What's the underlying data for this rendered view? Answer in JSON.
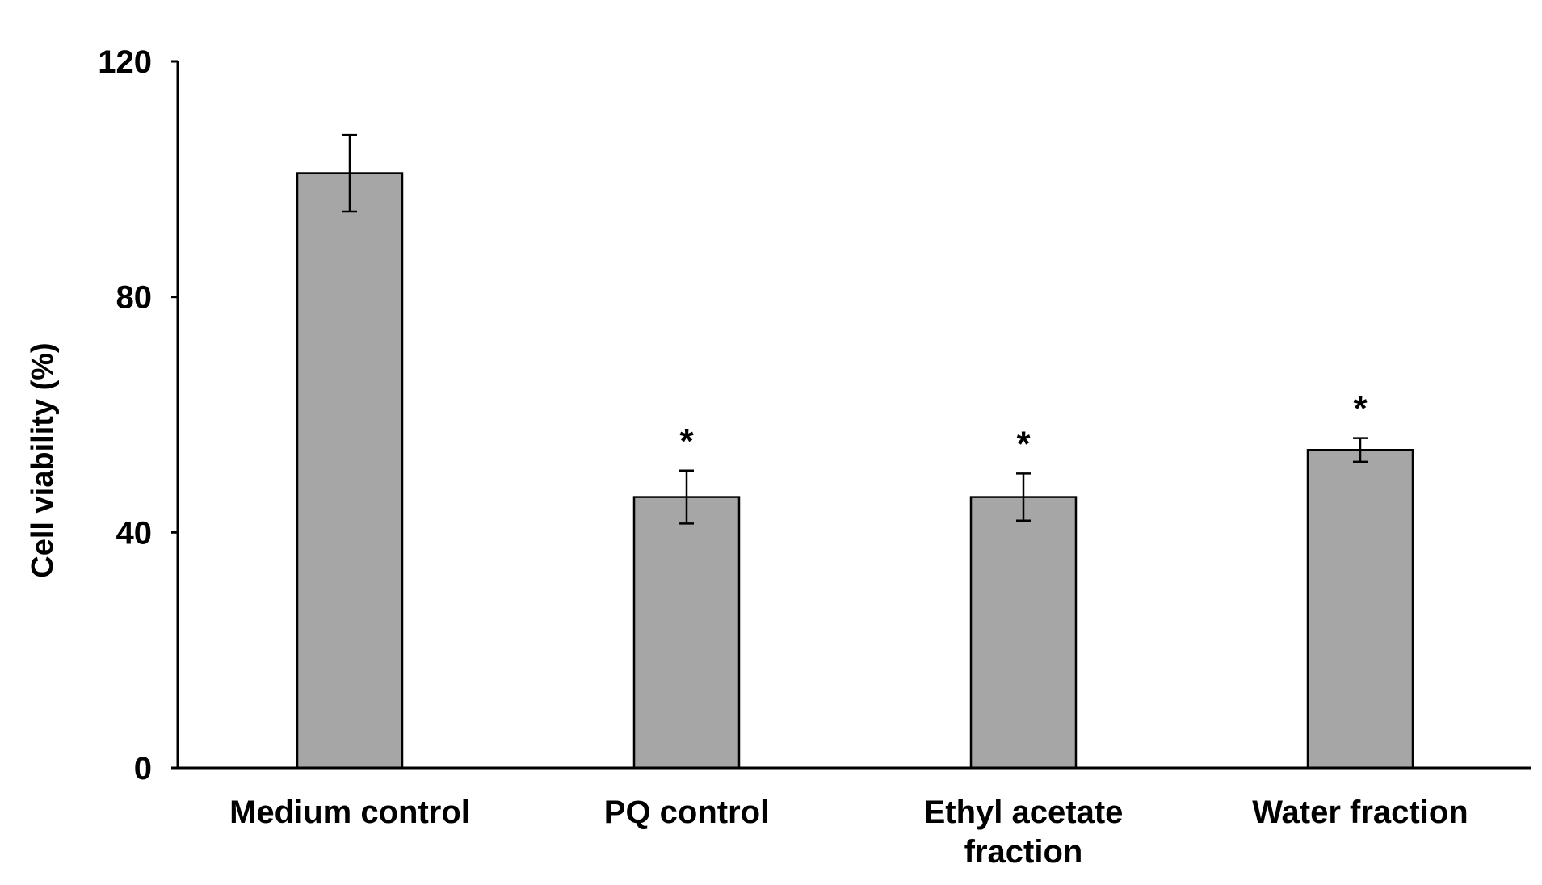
{
  "chart_data": {
    "type": "bar",
    "categories": [
      [
        "Medium control"
      ],
      [
        "PQ control"
      ],
      [
        "Ethyl acetate",
        "fraction"
      ],
      [
        "Water fraction"
      ]
    ],
    "values": [
      101,
      46,
      46,
      54
    ],
    "errors": [
      6.5,
      4.5,
      4,
      2
    ],
    "significance": [
      "",
      "*",
      "*",
      "*"
    ],
    "xlabel": "",
    "ylabel": "Cell viability (%)",
    "ylim": [
      0,
      120
    ],
    "yticks": [
      0,
      40,
      80,
      120
    ],
    "grid": false,
    "legend": "none",
    "colors": {
      "bar_fill": "#a6a6a6",
      "bar_stroke": "#000000",
      "axis": "#000000",
      "background": "#ffffff"
    }
  }
}
